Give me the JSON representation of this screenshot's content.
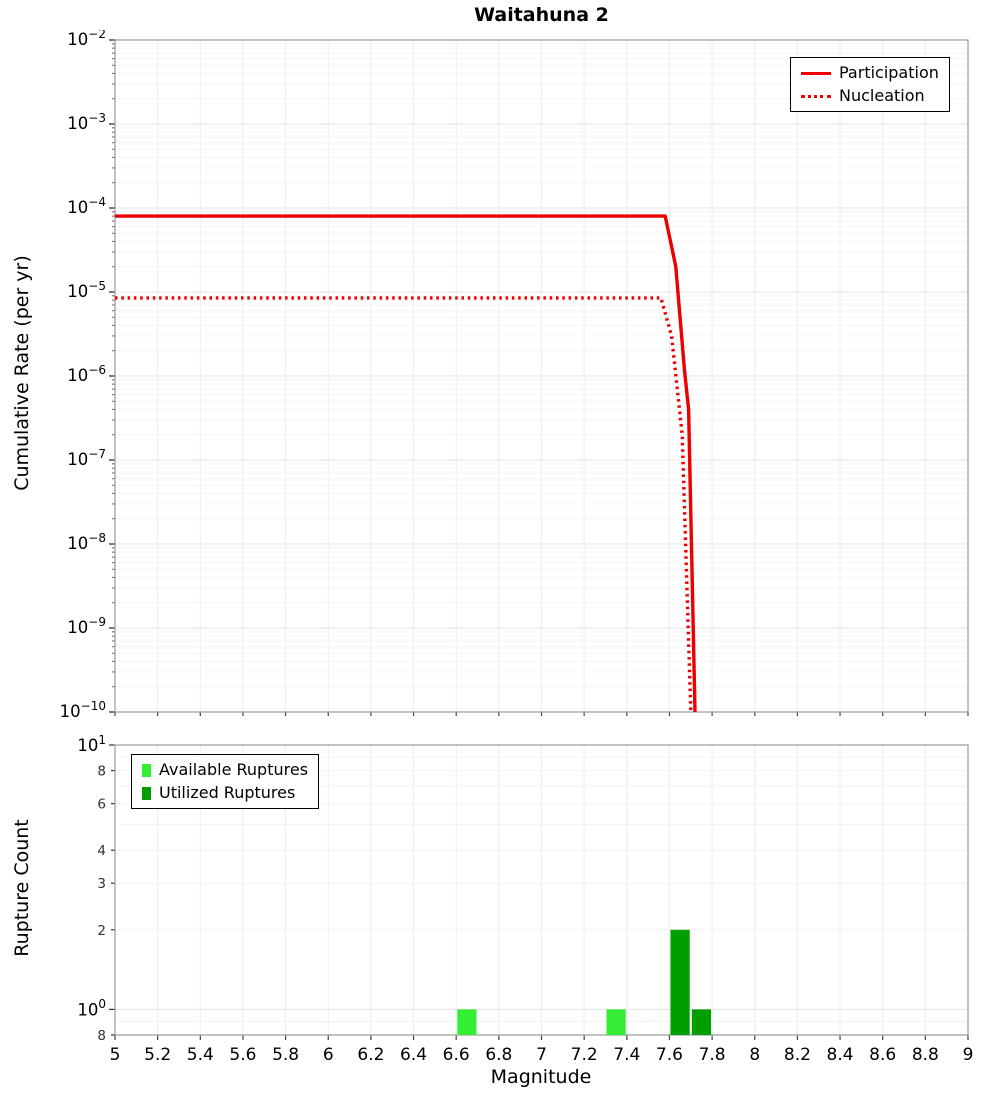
{
  "title": "Waitahuna 2",
  "chart_data": [
    {
      "type": "line",
      "title": "Waitahuna 2",
      "xlabel": "Magnitude",
      "ylabel": "Cumulative Rate (per yr)",
      "xlim": [
        5,
        9
      ],
      "x_tick_step": 0.2,
      "yscale": "log",
      "y_exp_range": [
        -10,
        -2
      ],
      "grid": true,
      "legend_position": "top-right",
      "series": [
        {
          "name": "Participation",
          "color": "#ee0000",
          "style": "solid",
          "points": [
            [
              5.0,
              8e-05
            ],
            [
              7.58,
              8e-05
            ],
            [
              7.63,
              2e-05
            ],
            [
              7.67,
              1.2e-06
            ],
            [
              7.69,
              4e-07
            ],
            [
              7.72,
              1e-10
            ]
          ]
        },
        {
          "name": "Nucleation",
          "color": "#ee0000",
          "style": "dotted",
          "points": [
            [
              5.0,
              8.5e-06
            ],
            [
              7.56,
              8.5e-06
            ],
            [
              7.61,
              3e-06
            ],
            [
              7.66,
              2e-07
            ],
            [
              7.7,
              1e-10
            ]
          ]
        }
      ]
    },
    {
      "type": "bar",
      "xlabel": "Magnitude",
      "ylabel": "Rupture Count",
      "xlim": [
        5,
        9
      ],
      "yscale": "log",
      "ylim": [
        0.8,
        10
      ],
      "bar_width": 0.09,
      "grid": true,
      "legend_position": "top-left",
      "x_ticks": [
        5,
        5.2,
        5.4,
        5.6,
        5.8,
        6,
        6.2,
        6.4,
        6.6,
        6.8,
        7,
        7.2,
        7.4,
        7.6,
        7.8,
        8,
        8.2,
        8.4,
        8.6,
        8.8,
        9
      ],
      "x_tick_labels": [
        "5",
        "5.2",
        "5.4",
        "5.6",
        "5.8",
        "6",
        "6.2",
        "6.4",
        "6.6",
        "6.8",
        "7",
        "7.2",
        "7.4",
        "7.6",
        "7.8",
        "8",
        "8.2",
        "8.4",
        "8.6",
        "8.8",
        "9"
      ],
      "y_ticks": [
        {
          "value": 10,
          "label": "10",
          "sup": "1"
        },
        {
          "value": 8,
          "label": "8"
        },
        {
          "value": 6,
          "label": "6"
        },
        {
          "value": 4,
          "label": "4"
        },
        {
          "value": 3,
          "label": "3"
        },
        {
          "value": 2,
          "label": "2"
        },
        {
          "value": 1,
          "label": "10",
          "sup": "0"
        },
        {
          "value": 0.8,
          "label": "8"
        }
      ],
      "series": [
        {
          "name": "Available Ruptures",
          "color": "#33ee33",
          "bars": [
            {
              "x": 6.65,
              "count": 1
            },
            {
              "x": 7.35,
              "count": 1
            }
          ]
        },
        {
          "name": "Utilized Ruptures",
          "color": "#009e00",
          "bars": [
            {
              "x": 7.65,
              "count": 2
            },
            {
              "x": 7.75,
              "count": 1
            }
          ]
        }
      ]
    }
  ]
}
